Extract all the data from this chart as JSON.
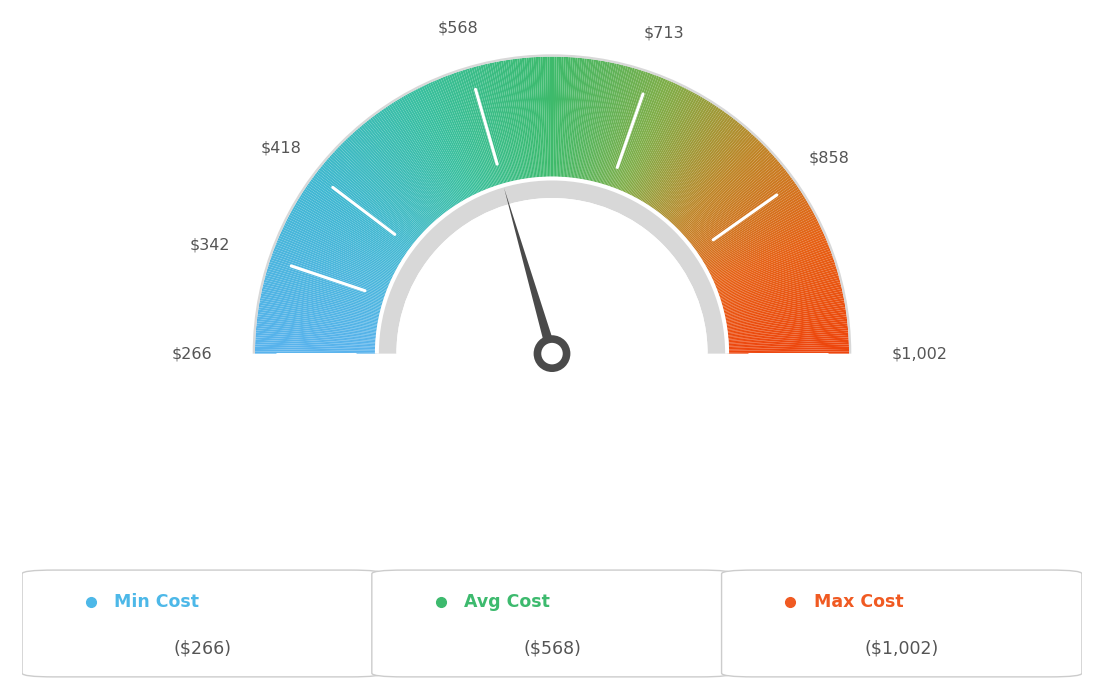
{
  "min_val": 266,
  "max_val": 1002,
  "avg_val": 568,
  "tick_labels": [
    "$266",
    "$342",
    "$418",
    "$568",
    "$713",
    "$858",
    "$1,002"
  ],
  "tick_values": [
    266,
    342,
    418,
    568,
    713,
    858,
    1002
  ],
  "legend": [
    {
      "label": "Min Cost",
      "value": "($266)",
      "color": "#4db8e8"
    },
    {
      "label": "Avg Cost",
      "value": "($568)",
      "color": "#3dba6e"
    },
    {
      "label": "Max Cost",
      "value": "($1,002)",
      "color": "#f05a22"
    }
  ],
  "background_color": "#ffffff",
  "color_stops": [
    [
      0.0,
      [
        0.35,
        0.7,
        0.93
      ]
    ],
    [
      0.2,
      [
        0.25,
        0.72,
        0.82
      ]
    ],
    [
      0.35,
      [
        0.22,
        0.75,
        0.62
      ]
    ],
    [
      0.5,
      [
        0.24,
        0.73,
        0.42
      ]
    ],
    [
      0.63,
      [
        0.5,
        0.68,
        0.28
      ]
    ],
    [
      0.75,
      [
        0.75,
        0.52,
        0.15
      ]
    ],
    [
      0.87,
      [
        0.9,
        0.38,
        0.08
      ]
    ],
    [
      1.0,
      [
        0.93,
        0.27,
        0.05
      ]
    ]
  ]
}
